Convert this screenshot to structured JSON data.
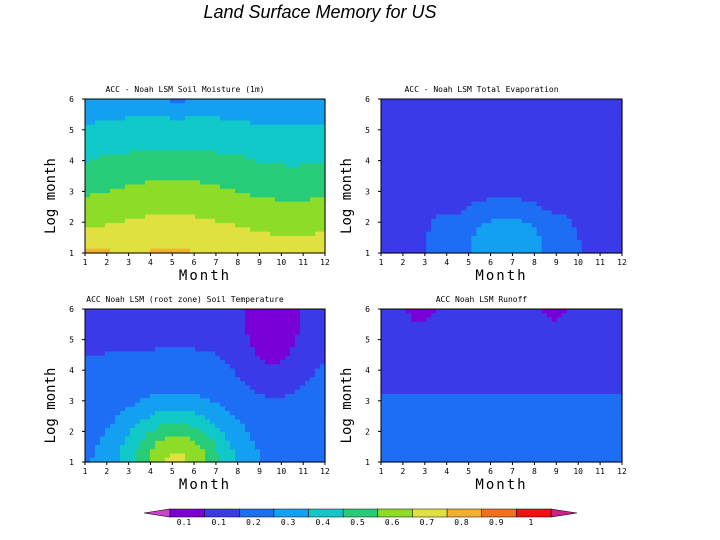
{
  "page": {
    "title": "Land Surface Memory for US"
  },
  "chart_data": [
    {
      "type": "heatmap",
      "title": "ACC - Noah LSM Soil Moisture (1m)",
      "xlabel": "Month",
      "ylabel": "Log month",
      "xticks": [
        1,
        2,
        3,
        4,
        5,
        6,
        7,
        8,
        9,
        10,
        11,
        12
      ],
      "yticks": [
        1,
        2,
        3,
        4,
        5,
        6
      ],
      "xlim": [
        1,
        12
      ],
      "ylim": [
        1,
        6
      ],
      "field": "soil_moisture"
    },
    {
      "type": "heatmap",
      "title": "ACC - Noah LSM Total Evaporation",
      "xlabel": "Month",
      "ylabel": "Log month",
      "xticks": [
        1,
        2,
        3,
        4,
        5,
        6,
        7,
        8,
        9,
        10,
        11,
        12
      ],
      "yticks": [
        1,
        2,
        3,
        4,
        5,
        6
      ],
      "xlim": [
        1,
        12
      ],
      "ylim": [
        1,
        6
      ],
      "field": "total_evaporation"
    },
    {
      "type": "heatmap",
      "title": "ACC    Noah LSM (root zone) Soil Temperature",
      "xlabel": "Month",
      "ylabel": "Log month",
      "xticks": [
        1,
        2,
        3,
        4,
        5,
        6,
        7,
        8,
        9,
        10,
        11,
        12
      ],
      "yticks": [
        1,
        2,
        3,
        4,
        5,
        6
      ],
      "xlim": [
        1,
        12
      ],
      "ylim": [
        1,
        6
      ],
      "field": "soil_temperature"
    },
    {
      "type": "heatmap",
      "title": "ACC    Noah LSM Runoff",
      "xlabel": "Month",
      "ylabel": "Log month",
      "xticks": [
        1,
        2,
        3,
        4,
        5,
        6,
        7,
        8,
        9,
        10,
        11,
        12
      ],
      "yticks": [
        1,
        2,
        3,
        4,
        5,
        6
      ],
      "xlim": [
        1,
        12
      ],
      "ylim": [
        1,
        6
      ],
      "field": "runoff"
    }
  ],
  "colorbar": {
    "labels": [
      "0.1",
      "0.1",
      "0.2",
      "0.3",
      "0.4",
      "0.5",
      "0.6",
      "0.7",
      "0.8",
      "0.9",
      "1"
    ],
    "colors": [
      "#7a00d8",
      "#3a3ae8",
      "#1e6ef5",
      "#14a0f0",
      "#10c8c8",
      "#28cc78",
      "#8cdc28",
      "#e0e040",
      "#f0b030",
      "#f07020",
      "#f01010"
    ],
    "arrow_low_color": "#cc44cc",
    "arrow_high_color": "#cc2288",
    "levels": [
      0.05,
      0.15,
      0.25,
      0.35,
      0.45,
      0.55,
      0.65,
      0.75,
      0.85,
      0.95
    ]
  }
}
